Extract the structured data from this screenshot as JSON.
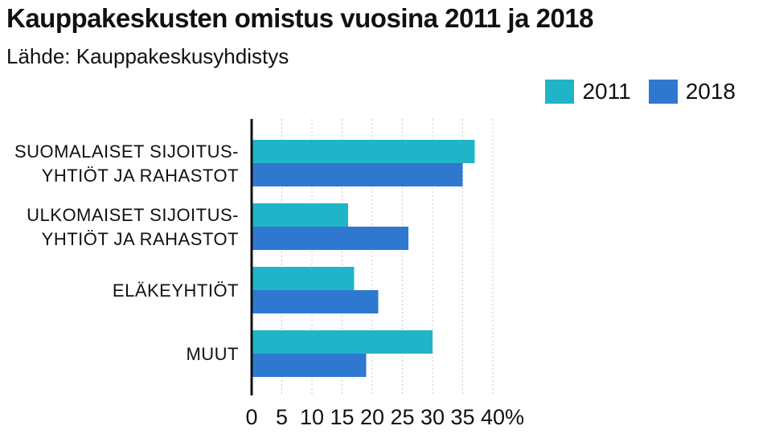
{
  "chart_data": {
    "type": "bar",
    "orientation": "horizontal",
    "title": "Kauppakeskusten omistus vuosina 2011 ja 2018",
    "subtitle": "Lähde: Kauppakeskusyhdistys",
    "categories": [
      [
        "SUOMALAISET SIJOITUS-",
        "YHTIÖT JA RAHASTOT"
      ],
      [
        "ULKOMAISET SIJOITUS-",
        "YHTIÖT JA RAHASTOT"
      ],
      [
        "ELÄKEYHTIÖT"
      ],
      [
        "MUUT"
      ]
    ],
    "series": [
      {
        "name": "2011",
        "color": "#20b4c8",
        "values": [
          37,
          16,
          17,
          30
        ]
      },
      {
        "name": "2018",
        "color": "#2f78d0",
        "values": [
          35,
          26,
          21,
          19
        ]
      }
    ],
    "xlim": [
      0,
      40
    ],
    "ticks": [
      "0",
      "5",
      "10",
      "15",
      "20",
      "25",
      "30",
      "35",
      "40%"
    ],
    "grid": true,
    "legend": "top-right"
  }
}
